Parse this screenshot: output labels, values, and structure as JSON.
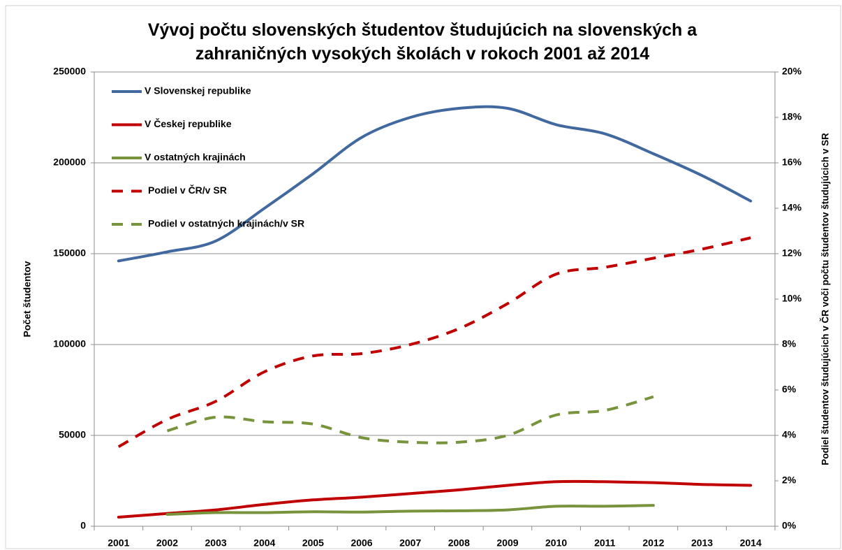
{
  "chart_data": {
    "type": "line",
    "title": "Vývoj počtu slovenských študentov študujúcich na slovenských a zahraničných vysokých školách v rokoch 2001 až 2014",
    "ylabel": "Počet študentov",
    "y2label": "Podiel študentov študujúcich v ČR voči počtu študentov študujúcich v SR",
    "categories": [
      "2001",
      "2002",
      "2003",
      "2004",
      "2005",
      "2006",
      "2007",
      "2008",
      "2009",
      "2010",
      "2011",
      "2012",
      "2013",
      "2014"
    ],
    "ylim": [
      0,
      250000
    ],
    "yticks": [
      0,
      50000,
      100000,
      150000,
      200000,
      250000
    ],
    "y2lim": [
      0,
      20
    ],
    "y2ticks": [
      {
        "value": 0,
        "label": "0%"
      },
      {
        "value": 2,
        "label": "2%"
      },
      {
        "value": 4,
        "label": "4%"
      },
      {
        "value": 6,
        "label": "6%"
      },
      {
        "value": 8,
        "label": "8%"
      },
      {
        "value": 10,
        "label": "10%"
      },
      {
        "value": 12,
        "label": "12%"
      },
      {
        "value": 14,
        "label": "14%"
      },
      {
        "value": 16,
        "label": "16%"
      },
      {
        "value": 18,
        "label": "18%"
      },
      {
        "value": 20,
        "label": "20%"
      }
    ],
    "grid": true,
    "legend": "upper left",
    "series": [
      {
        "name": "V Slovenskej republike",
        "color": "#4169a0",
        "dashed": false,
        "values": [
          146000,
          151000,
          157000,
          175000,
          194000,
          214000,
          225000,
          230000,
          230000,
          221000,
          216000,
          205000,
          193000,
          179000
        ]
      },
      {
        "name": "V Českej republike",
        "color": "#c00000",
        "dashed": false,
        "values": [
          5000,
          7000,
          9000,
          12000,
          14500,
          16000,
          18000,
          20000,
          22500,
          24500,
          24500,
          24000,
          23000,
          22500
        ]
      },
      {
        "name": "V ostatných krajinách",
        "color": "#77933c",
        "dashed": false,
        "values": [
          null,
          6500,
          7500,
          7500,
          8000,
          7800,
          8300,
          8500,
          9000,
          11000,
          11000,
          11500,
          null,
          null
        ]
      },
      {
        "name": "Podiel v ČR/v SR",
        "color": "#c00000",
        "dashed": true,
        "axis": "y2",
        "values": [
          3.5,
          4.7,
          5.5,
          6.8,
          7.5,
          7.6,
          8.0,
          8.7,
          9.8,
          11.1,
          11.4,
          11.8,
          12.2,
          12.7
        ]
      },
      {
        "name": "Podiel v ostatných krajinách/v SR",
        "color": "#77933c",
        "dashed": true,
        "axis": "y2",
        "values": [
          null,
          4.2,
          4.8,
          4.6,
          4.5,
          3.9,
          3.7,
          3.7,
          4.0,
          4.9,
          5.1,
          5.7,
          null,
          null
        ]
      }
    ]
  }
}
